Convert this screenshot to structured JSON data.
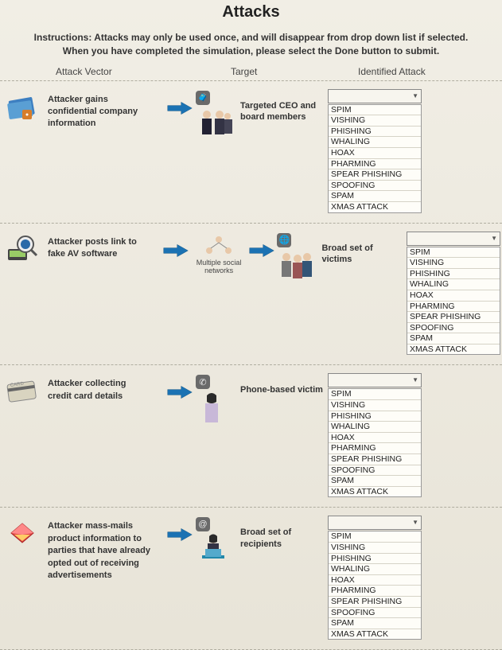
{
  "title": "Attacks",
  "instructions": "Instructions: Attacks may only be used once, and will disappear from drop down list if selected. When you have completed the simulation, please select the Done button to submit.",
  "columns": {
    "vector": "Attack Vector",
    "target": "Target",
    "attack": "Identified Attack"
  },
  "attack_options": [
    "SPIM",
    "VISHING",
    "PHISHING",
    "WHALING",
    "HOAX",
    "PHARMING",
    "SPEAR PHISHING",
    "SPOOFING",
    "SPAM",
    "XMAS ATTACK"
  ],
  "rows": [
    {
      "vector_icon": "folder-lock-icon",
      "vector_text": "Attacker gains confidential company information",
      "mid": null,
      "target_badge": "briefcase-icon",
      "target_img": "group-suits",
      "target_text": "Targeted CEO and board members"
    },
    {
      "vector_icon": "magnifier-av-icon",
      "vector_text": "Attacker posts link to fake AV software",
      "mid": {
        "icon": "network-icon",
        "label": "Multiple social networks",
        "arrow_after": true
      },
      "target_badge": "globe-icon",
      "target_img": "group-people",
      "target_text": "Broad set of victims"
    },
    {
      "vector_icon": "credit-card-icon",
      "vector_text": "Attacker collecting credit card details",
      "mid": null,
      "target_badge": "phone-icon",
      "target_img": "single-woman",
      "target_text": "Phone-based victim"
    },
    {
      "vector_icon": "envelope-mass-icon",
      "vector_text": "Attacker mass-mails product information to parties that have already opted out of receiving advertisements",
      "mid": null,
      "target_badge": "at-icon",
      "target_img": "woman-laptop",
      "target_text": "Broad set of recipients"
    }
  ],
  "colors": {
    "bg": "#ece9df",
    "arrow": "#1b72b3",
    "divider": "#b0ada0"
  }
}
